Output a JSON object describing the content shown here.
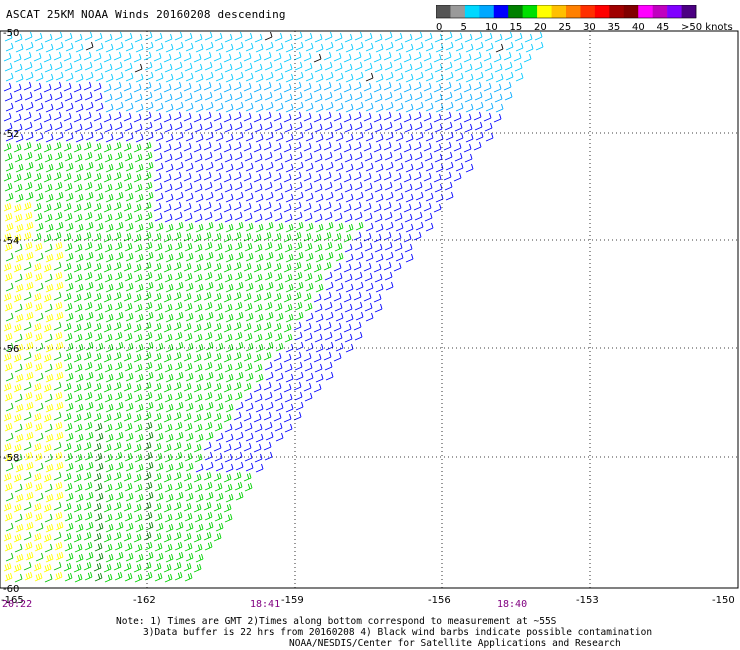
{
  "title": "ASCAT 25KM NOAA Winds 20160208 descending",
  "colorbar": {
    "tick_labels": [
      "0",
      "5",
      "10",
      "15",
      "20",
      "25",
      "30",
      "35",
      "40",
      "45",
      ">50 knots"
    ],
    "colors": [
      "#555555",
      "#9a9a9a",
      "#00d8ff",
      "#00a8ff",
      "#0000ff",
      "#008000",
      "#00e000",
      "#ffff00",
      "#ffc000",
      "#ff8000",
      "#ff3000",
      "#ff0000",
      "#a00000",
      "#800000",
      "#ff00ff",
      "#c000c0",
      "#8000ff",
      "#4b0082"
    ]
  },
  "axes": {
    "lat_labels": [
      "-50",
      "-52",
      "-54",
      "-56",
      "-58",
      "-60"
    ],
    "lon_labels": [
      "-165",
      "-162",
      "-159",
      "-156",
      "-153",
      "-150"
    ],
    "grid": "dotted"
  },
  "time_labels": [
    "20:22",
    "18:41",
    "18:40"
  ],
  "notes": {
    "line1": "Note: 1) Times are GMT 2)Times along bottom correspond to measurement at ~55S",
    "line2": "3)Data buffer is 22 hrs from 20160208 4) Black wind barbs indicate possible contamination",
    "line3": "NOAA/NESDIS/Center for Satellite Applications and Research"
  },
  "wind_field": {
    "zones_by_speed_knots": [
      {
        "range": "10-15",
        "color": "#00a8ff",
        "region": "northern band near -50"
      },
      {
        "range": "15-20",
        "color": "#0000ff",
        "region": "central swath -51 to -56"
      },
      {
        "range": "20-25",
        "color": "#00e000",
        "region": "southern swath -53 to -60"
      },
      {
        "range": "25-30",
        "color": "#ffff00",
        "region": "western edge -54 to -60"
      },
      {
        "range": "contaminated",
        "color": "#000000",
        "region": "scattered near -50"
      }
    ]
  }
}
